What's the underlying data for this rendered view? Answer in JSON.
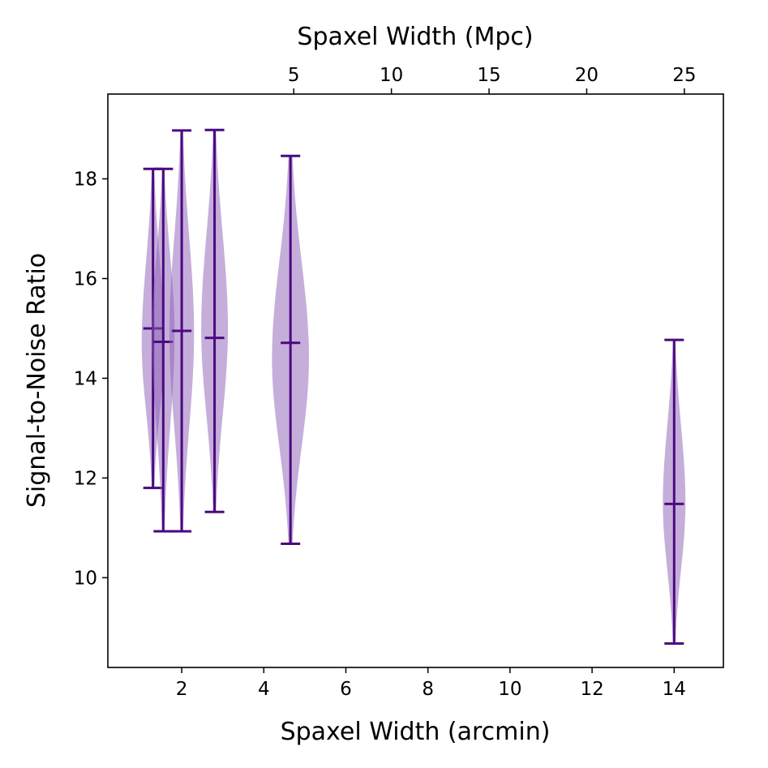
{
  "chart_data": {
    "type": "violin",
    "xlabel": "Spaxel Width (arcmin)",
    "ylabel": "Signal-to-Noise Ratio",
    "secondary_xlabel": "Spaxel Width (Mpc)",
    "xlim": [
      0.2,
      15.2
    ],
    "ylim": [
      8.2,
      19.7
    ],
    "secondary_xlim": [
      -4.52,
      27.0
    ],
    "xticks": [
      2,
      4,
      6,
      8,
      10,
      12,
      14
    ],
    "yticks": [
      10,
      12,
      14,
      16,
      18
    ],
    "secondary_xticks": [
      5,
      10,
      15,
      20,
      25
    ],
    "color": {
      "fill": "#8c5db5",
      "fill_opacity": 0.5,
      "line": "#4b0a80"
    },
    "violins": [
      {
        "x": 1.3,
        "min": 11.8,
        "max": 18.2,
        "median": 15.0,
        "peak": 14.7,
        "width": 0.55
      },
      {
        "x": 1.55,
        "min": 10.93,
        "max": 18.2,
        "median": 14.73,
        "peak": 14.9,
        "width": 0.55
      },
      {
        "x": 2.0,
        "min": 10.93,
        "max": 18.97,
        "median": 14.95,
        "peak": 14.9,
        "width": 0.6
      },
      {
        "x": 2.8,
        "min": 11.32,
        "max": 18.98,
        "median": 14.81,
        "peak": 15.0,
        "width": 0.65
      },
      {
        "x": 4.65,
        "min": 10.68,
        "max": 18.46,
        "median": 14.71,
        "peak": 14.4,
        "width": 0.9
      },
      {
        "x": 14.0,
        "min": 8.68,
        "max": 14.77,
        "median": 11.48,
        "peak": 11.5,
        "width": 0.55
      }
    ]
  }
}
